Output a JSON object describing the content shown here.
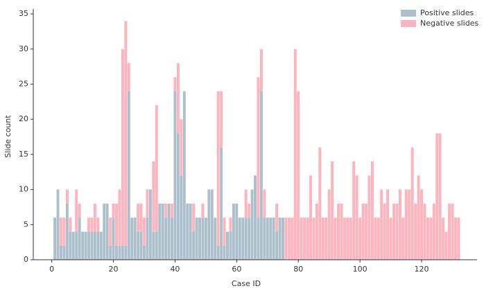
{
  "chart_data": {
    "type": "bar",
    "stacked": true,
    "x_label": "Case ID",
    "y_label": "Slide count",
    "x": [
      1,
      2,
      3,
      4,
      5,
      6,
      7,
      8,
      9,
      10,
      11,
      12,
      13,
      14,
      15,
      16,
      17,
      18,
      19,
      20,
      21,
      22,
      23,
      24,
      25,
      26,
      27,
      28,
      29,
      30,
      31,
      32,
      33,
      34,
      35,
      36,
      37,
      38,
      39,
      40,
      41,
      42,
      43,
      44,
      45,
      46,
      47,
      48,
      49,
      50,
      51,
      52,
      53,
      54,
      55,
      56,
      57,
      58,
      59,
      60,
      61,
      62,
      63,
      64,
      65,
      66,
      67,
      68,
      69,
      70,
      71,
      72,
      73,
      74,
      75,
      76,
      77,
      78,
      79,
      80,
      81,
      82,
      83,
      84,
      85,
      86,
      87,
      88,
      89,
      90,
      91,
      92,
      93,
      94,
      95,
      96,
      97,
      98,
      99,
      100,
      101,
      102,
      103,
      104,
      105,
      106,
      107,
      108,
      109,
      110,
      111,
      112,
      113,
      114,
      115,
      116,
      117,
      118,
      119,
      120,
      121,
      122,
      123,
      124,
      125,
      126,
      127,
      128,
      129,
      130,
      131,
      132
    ],
    "series": [
      {
        "name": "Positive slides",
        "color": "#abc0cb",
        "values": [
          6,
          10,
          2,
          2,
          8,
          4,
          4,
          4,
          6,
          4,
          4,
          4,
          4,
          4,
          4,
          4,
          8,
          8,
          2,
          6,
          2,
          2,
          2,
          2,
          24,
          6,
          6,
          4,
          4,
          2,
          6,
          10,
          4,
          4,
          8,
          8,
          6,
          8,
          6,
          24,
          18,
          12,
          24,
          8,
          8,
          4,
          6,
          6,
          6,
          6,
          10,
          10,
          6,
          2,
          16,
          2,
          4,
          4,
          8,
          8,
          6,
          6,
          6,
          6,
          10,
          12,
          6,
          24,
          6,
          6,
          6,
          6,
          4,
          6,
          6,
          null,
          null,
          null,
          null,
          null,
          null,
          null,
          null,
          null,
          null,
          null,
          null,
          null,
          null,
          null,
          null,
          null,
          null,
          null,
          null,
          null,
          null,
          null,
          null,
          null,
          null,
          null,
          null,
          null,
          null,
          null,
          null,
          null,
          null,
          null,
          null,
          null,
          null,
          null,
          null,
          null,
          null,
          null,
          null,
          null,
          null,
          null,
          null,
          null,
          null,
          null,
          null,
          null,
          null,
          null,
          null,
          null
        ]
      },
      {
        "name": "Negative slides",
        "color": "#ffb3bc",
        "values": [
          0,
          0,
          4,
          4,
          2,
          2,
          0,
          6,
          2,
          0,
          0,
          2,
          2,
          4,
          2,
          0,
          0,
          0,
          4,
          2,
          6,
          8,
          28,
          32,
          4,
          0,
          0,
          4,
          4,
          4,
          4,
          0,
          10,
          18,
          0,
          0,
          2,
          0,
          2,
          2,
          10,
          8,
          0,
          0,
          0,
          4,
          0,
          0,
          2,
          0,
          0,
          0,
          0,
          22,
          8,
          4,
          0,
          2,
          0,
          0,
          0,
          0,
          4,
          2,
          0,
          0,
          20,
          6,
          4,
          0,
          0,
          0,
          4,
          0,
          0,
          6,
          6,
          6,
          30,
          24,
          6,
          6,
          6,
          12,
          6,
          8,
          16,
          6,
          6,
          10,
          14,
          6,
          8,
          8,
          6,
          6,
          6,
          14,
          12,
          6,
          8,
          8,
          12,
          14,
          6,
          6,
          10,
          8,
          10,
          6,
          8,
          8,
          10,
          6,
          10,
          10,
          16,
          8,
          12,
          10,
          8,
          6,
          6,
          8,
          18,
          18,
          6,
          4,
          8,
          8,
          6,
          6
        ]
      }
    ],
    "xlim": [
      -6,
      138
    ],
    "xticks": [
      0,
      20,
      40,
      60,
      80,
      100,
      120
    ],
    "ylim": [
      0,
      35.5
    ],
    "yticks": [
      0,
      5,
      10,
      15,
      20,
      25,
      30,
      35
    ],
    "legend": "upper right"
  }
}
